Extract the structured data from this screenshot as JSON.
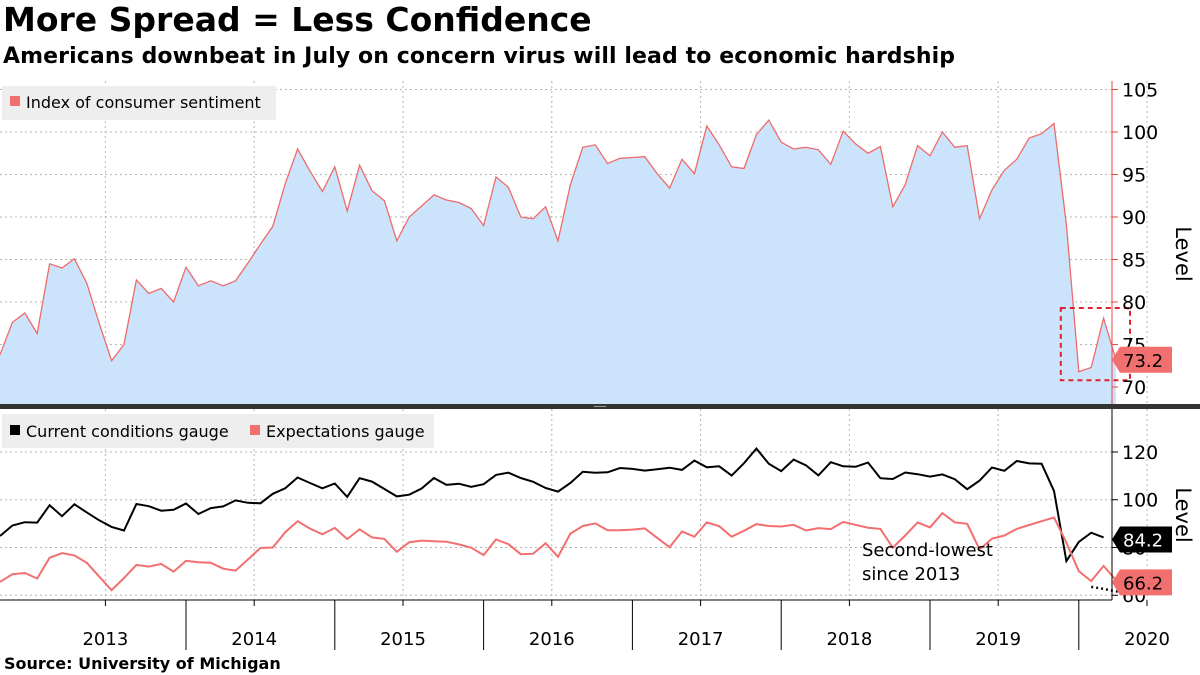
{
  "title": "More Spread = Less Confidence",
  "subtitle": "Americans downbeat in July on concern virus will lead to economic hardship",
  "source": "Source: University of Michigan",
  "colors": {
    "sentiment_fill": "#cce4fb",
    "sentiment_line": "#ef6b6b",
    "current": "#000000",
    "expectations": "#f26f6f",
    "highlight_box": "#e0202a",
    "legend_bg": "#eeeeee"
  },
  "chart_data": [
    {
      "type": "area",
      "title": "",
      "ylabel": "Level",
      "ylim": [
        68,
        106
      ],
      "yticks": [
        70,
        75,
        80,
        85,
        90,
        95,
        100,
        105
      ],
      "grid": true,
      "legend_position": "top-left",
      "x_start": "2012-10",
      "x_end": "2020-07",
      "series": [
        {
          "name": "Index of consumer sentiment",
          "last_value_label": "73.2",
          "values": [
            73.8,
            77.6,
            78.7,
            76.3,
            84.5,
            84.0,
            85.1,
            82.2,
            77.5,
            73.1,
            75.0,
            82.6,
            81.0,
            81.6,
            80.0,
            84.1,
            81.9,
            82.5,
            81.9,
            82.5,
            84.6,
            86.8,
            88.9,
            93.9,
            98.0,
            95.4,
            93.0,
            95.9,
            90.7,
            96.1,
            93.1,
            91.9,
            87.2,
            90.0,
            91.3,
            92.6,
            92.0,
            91.7,
            91.0,
            89.0,
            94.7,
            93.5,
            90.0,
            89.8,
            91.2,
            87.2,
            93.8,
            98.2,
            98.5,
            96.3,
            96.9,
            97.0,
            97.1,
            95.1,
            93.4,
            96.8,
            95.1,
            100.7,
            98.5,
            95.9,
            95.7,
            99.7,
            101.4,
            98.8,
            98.0,
            98.2,
            97.9,
            96.2,
            100.1,
            98.6,
            97.5,
            98.3,
            91.2,
            93.8,
            98.4,
            97.2,
            100.0,
            98.2,
            98.4,
            89.8,
            93.2,
            95.5,
            96.8,
            99.3,
            99.8,
            101.0,
            89.1,
            71.8,
            72.3,
            78.1,
            73.2
          ]
        }
      ]
    },
    {
      "type": "line",
      "title": "",
      "ylabel": "Level",
      "ylim": [
        58,
        138
      ],
      "yticks": [
        60,
        80,
        100,
        120
      ],
      "grid": true,
      "legend_position": "top-left",
      "x_labels": [
        "2013",
        "2014",
        "2015",
        "2016",
        "2017",
        "2018",
        "2019",
        "2020"
      ],
      "annotation": [
        "Second-lowest",
        "since 2013"
      ],
      "series": [
        {
          "name": "Current conditions gauge",
          "last_value_label": "84.2",
          "values": [
            84.8,
            89.2,
            90.6,
            90.4,
            97.7,
            93.1,
            98.1,
            94.7,
            91.4,
            88.6,
            87.1,
            98.2,
            97.3,
            95.4,
            95.8,
            98.4,
            94.0,
            96.5,
            97.2,
            99.7,
            98.7,
            98.5,
            102.5,
            104.8,
            109.3,
            107.0,
            104.8,
            106.8,
            101.2,
            109.0,
            107.6,
            104.5,
            101.4,
            102.1,
            104.7,
            109.1,
            106.2,
            106.7,
            105.4,
            106.5,
            110.4,
            111.3,
            109.1,
            107.5,
            104.9,
            103.4,
            107.0,
            111.7,
            111.3,
            111.5,
            113.3,
            112.9,
            112.2,
            112.8,
            113.4,
            112.5,
            116.4,
            113.6,
            114.0,
            110.1,
            115.3,
            121.4,
            115.1,
            112.0,
            116.8,
            114.4,
            110.2,
            115.7,
            114.0,
            113.8,
            115.6,
            109.0,
            108.7,
            111.4,
            110.7,
            109.7,
            110.6,
            108.6,
            104.4,
            108.0,
            113.5,
            112.1,
            116.2,
            115.2,
            115.1,
            103.7,
            74.3,
            82.3,
            86.2,
            84.2
          ]
        },
        {
          "name": "Expectations gauge",
          "last_value_label": "66.2",
          "values": [
            65.6,
            68.8,
            69.3,
            67.0,
            75.7,
            77.6,
            76.7,
            73.6,
            67.8,
            62.1,
            67.2,
            72.7,
            72.0,
            73.1,
            69.9,
            74.4,
            73.8,
            73.6,
            71.1,
            70.3,
            75.0,
            79.8,
            80.0,
            86.4,
            91.0,
            87.9,
            85.5,
            88.2,
            83.5,
            87.6,
            84.2,
            83.6,
            78.2,
            82.2,
            82.9,
            82.6,
            82.4,
            81.3,
            79.9,
            76.8,
            83.4,
            81.4,
            77.2,
            77.4,
            81.8,
            76.1,
            85.8,
            89.0,
            90.1,
            87.2,
            87.2,
            87.5,
            88.0,
            84.0,
            80.1,
            86.7,
            84.5,
            90.5,
            88.9,
            84.5,
            87.0,
            89.8,
            89.0,
            88.8,
            89.5,
            87.1,
            88.1,
            87.7,
            90.7,
            89.5,
            88.3,
            87.8,
            79.9,
            85.0,
            90.5,
            88.4,
            94.4,
            90.5,
            89.9,
            79.2,
            83.7,
            85.0,
            87.8,
            89.4,
            91.0,
            92.6,
            82.0,
            70.1,
            65.9,
            72.3,
            66.2
          ]
        },
        {
          "name": "",
          "dotted": true,
          "x_start": "2020-02",
          "values": [
            63.5,
            62.8,
            62.0,
            61.2,
            60.8,
            61.0,
            61.6,
            64.0
          ]
        }
      ]
    }
  ]
}
